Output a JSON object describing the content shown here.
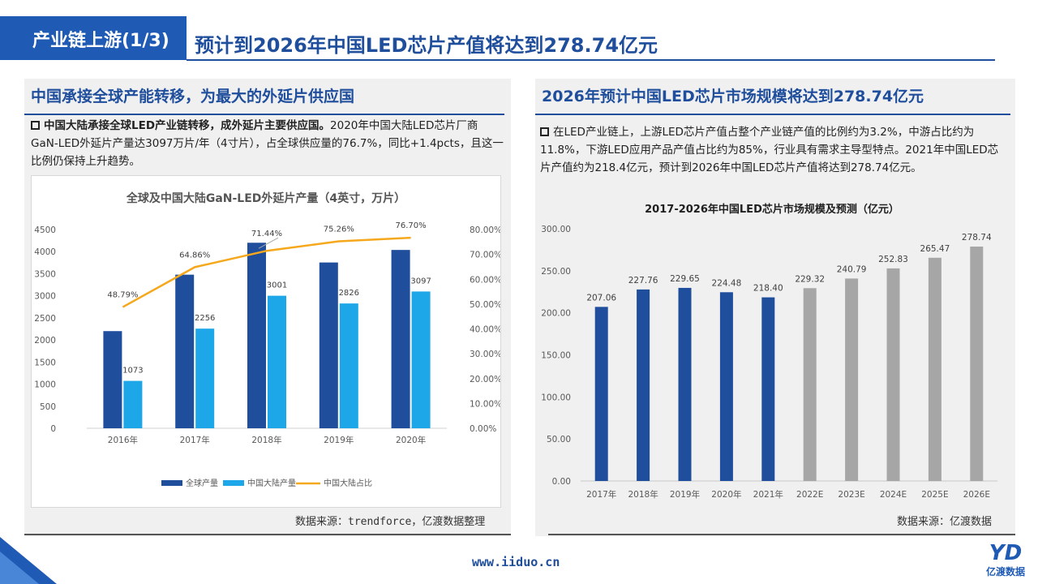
{
  "header": {
    "tag": "产业链上游(1/3)",
    "title": "预计到2026年中国LED芯片产值将达到278.74亿元"
  },
  "left": {
    "section_title": "中国承接全球产能转移，为最大的外延片供应国",
    "para_bold": "中国大陆承接全球LED产业链转移，成外延片主要供应国。",
    "para_text": "2020年中国大陆LED芯片厂商GaN-LED外延片产量达3097万片/年（4寸片），占全球供应量的76.7%，同比+1.4pcts，且这一比例仍保持上升趋势。",
    "source": "数据来源：trendforce，亿渡数据整理"
  },
  "right": {
    "section_title": "2026年预计中国LED芯片市场规模将达到278.74亿元",
    "para_text": "在LED产业链上，上游LED芯片产值占整个产业链产值的比例约为3.2%，中游占比约为11.8%，下游LED应用产品产值占比约为85%，行业具有需求主导型特点。2021年中国LED芯片产值约为218.4亿元，预计到2026年中国LED芯片产值将达到278.74亿元。",
    "source": "数据来源：亿渡数据"
  },
  "footer": {
    "url": "www.iiduo.cn",
    "logo_text": "亿渡数据"
  },
  "colors": {
    "brand": "#1f5bb5",
    "bar_dark": "#1f4e9c",
    "bar_light": "#1ea7e8",
    "line": "#f5a81c",
    "bar_gray": "#a6a6a6"
  },
  "chart_data": [
    {
      "type": "bar",
      "title": "全球及中国大陆GaN-LED外延片产量（4英寸，万片）",
      "categories": [
        "2016年",
        "2017年",
        "2018年",
        "2019年",
        "2020年"
      ],
      "series": [
        {
          "name": "全球产量",
          "type": "bar",
          "values": [
            2200,
            3478,
            4201,
            3754,
            4038
          ]
        },
        {
          "name": "中国大陆产量",
          "type": "bar",
          "values": [
            1073,
            2256,
            3001,
            2826,
            3097
          ]
        },
        {
          "name": "中国大陆占比",
          "type": "line",
          "axis": "right",
          "values": [
            48.79,
            64.86,
            71.44,
            75.26,
            76.7
          ]
        }
      ],
      "point_labels": {
        "中国大陆产量": [
          "1073",
          "2256",
          "3001",
          "2826",
          "3097"
        ],
        "中国大陆占比": [
          "48.79%",
          "64.86%",
          "71.44%",
          "75.26%",
          "76.70%"
        ]
      },
      "ylim": [
        0,
        4500
      ],
      "y_ticks": [
        "0",
        "500",
        "1000",
        "1500",
        "2000",
        "2500",
        "3000",
        "3500",
        "4000",
        "4500"
      ],
      "y2lim": [
        0,
        80
      ],
      "y2_ticks": [
        "0.00%",
        "10.00%",
        "20.00%",
        "30.00%",
        "40.00%",
        "50.00%",
        "60.00%",
        "70.00%",
        "80.00%"
      ],
      "legend_position": "bottom",
      "grid": false
    },
    {
      "type": "bar",
      "title": "2017-2026年中国LED芯片市场规模及预测（亿元）",
      "categories": [
        "2017年",
        "2018年",
        "2019年",
        "2020年",
        "2021年",
        "2022E",
        "2023E",
        "2024E",
        "2025E",
        "2026E"
      ],
      "values": [
        207.06,
        227.76,
        229.65,
        224.48,
        218.4,
        229.32,
        240.79,
        252.83,
        265.47,
        278.74
      ],
      "value_labels": [
        "207.06",
        "227.76",
        "229.65",
        "224.48",
        "218.40",
        "229.32",
        "240.79",
        "252.83",
        "265.47",
        "278.74"
      ],
      "forecast_from_index": 5,
      "ylim": [
        0,
        300
      ],
      "y_ticks": [
        "0.00",
        "50.00",
        "100.00",
        "150.00",
        "200.00",
        "250.00",
        "300.00"
      ],
      "grid": false
    }
  ]
}
